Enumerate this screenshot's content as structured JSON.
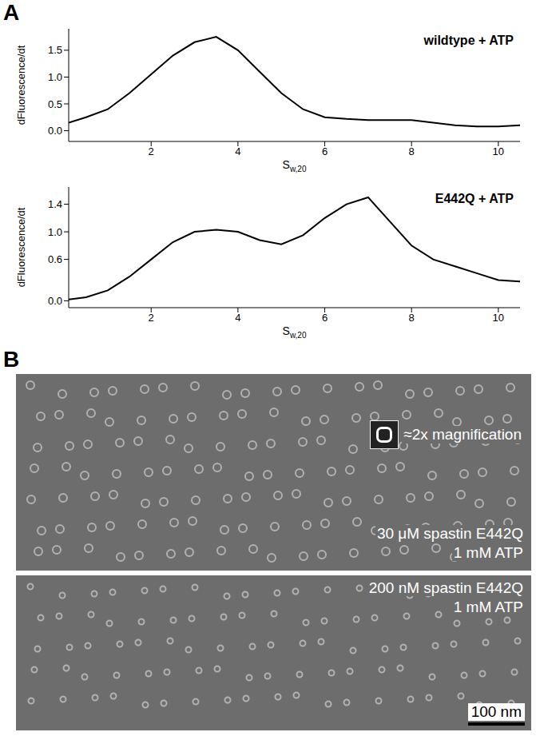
{
  "chart_data": [
    {
      "type": "line",
      "title": "wildtype + ATP",
      "x_label": "Sw,20",
      "y_label": "dFluorescence/dt",
      "color": "#000000",
      "x": [
        0.1,
        0.5,
        1,
        1.5,
        2,
        2.5,
        3,
        3.5,
        4,
        4.5,
        5,
        5.5,
        6,
        6.5,
        7,
        7.5,
        8,
        8.5,
        9,
        9.5,
        10,
        10.5
      ],
      "values": [
        0.15,
        0.25,
        0.4,
        0.7,
        1.05,
        1.4,
        1.65,
        1.75,
        1.5,
        1.1,
        0.7,
        0.4,
        0.25,
        0.22,
        0.2,
        0.2,
        0.2,
        0.15,
        0.1,
        0.08,
        0.08,
        0.1
      ],
      "xlim": [
        0.1,
        10.5
      ],
      "xticks": [
        2,
        4,
        6,
        8,
        10
      ],
      "ylim": [
        -0.2,
        1.9
      ],
      "yticks": [
        {
          "value": 0,
          "label": "0.0"
        },
        {
          "value": 0.5,
          "label": "0.5"
        },
        {
          "value": 1,
          "label": "1.0"
        },
        {
          "value": 1.5,
          "label": "1.5"
        }
      ],
      "grid": false
    },
    {
      "type": "line",
      "title": "E442Q + ATP",
      "x_label": "Sw,20",
      "y_label": "dFluorescence/dt",
      "color": "#000000",
      "x": [
        0.1,
        0.5,
        1,
        1.5,
        2,
        2.5,
        3,
        3.5,
        4,
        4.5,
        5,
        5.5,
        6,
        6.5,
        7,
        7.5,
        8,
        8.5,
        9,
        9.5,
        10,
        10.5
      ],
      "values": [
        0.02,
        0.05,
        0.15,
        0.35,
        0.6,
        0.85,
        1.0,
        1.03,
        1.0,
        0.88,
        0.82,
        0.95,
        1.2,
        1.4,
        1.5,
        1.15,
        0.8,
        0.6,
        0.5,
        0.4,
        0.3,
        0.28
      ],
      "xlim": [
        0.1,
        10.5
      ],
      "xticks": [
        2,
        4,
        6,
        8,
        10
      ],
      "ylim": [
        -0.1,
        1.65
      ],
      "yticks": [
        {
          "value": 0,
          "label": "0.0"
        },
        {
          "value": 0.6,
          "label": "0.6"
        },
        {
          "value": 1,
          "label": "1.0"
        },
        {
          "value": 1.4,
          "label": "1.4"
        }
      ],
      "grid": false
    }
  ],
  "panel_a_label": "A",
  "panel_b": {
    "panel_label": "B",
    "images": [
      {
        "annotations": [
          "30 μM spastin E442Q",
          "1 mM ATP"
        ],
        "inset_label": "≈2x magnification"
      },
      {
        "annotations": [
          "200 nM spastin E442Q",
          "1 mM ATP"
        ],
        "scale_bar": "100 nm"
      }
    ]
  }
}
